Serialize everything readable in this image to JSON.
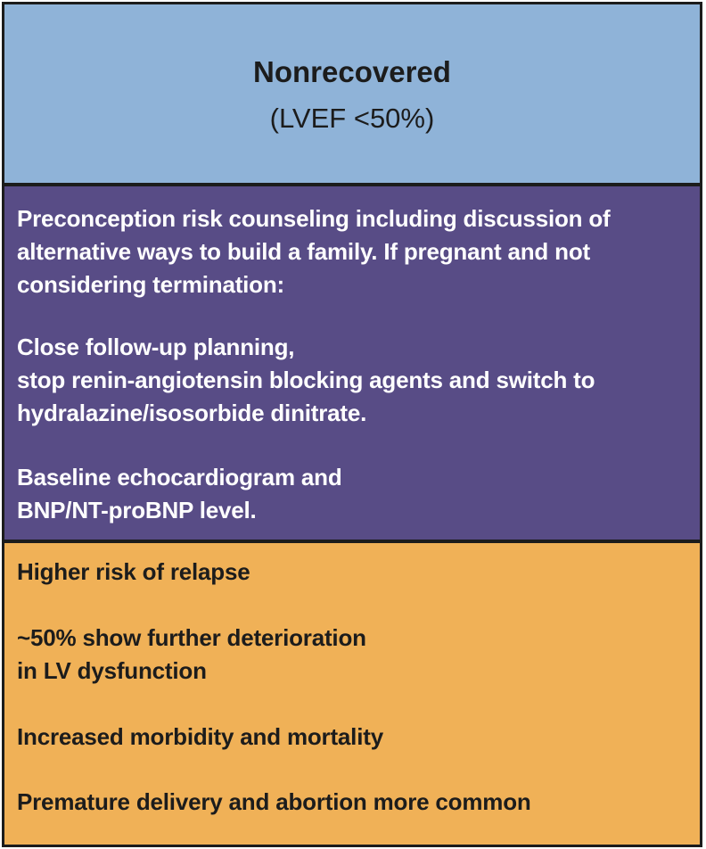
{
  "header": {
    "title": "Nonrecovered",
    "subtitle": "(LVEF <50%)"
  },
  "management": {
    "paragraphs": [
      "Preconception risk counseling including discussion of\nalternative ways to build a family. If pregnant and not\nconsidering termination:",
      "Close follow-up planning,\nstop renin-angiotensin blocking agents and switch to\nhydralazine/isosorbide dinitrate.",
      "Baseline echocardiogram and\nBNP/NT-proBNP level."
    ]
  },
  "outcomes": {
    "items": [
      "Higher risk of relapse",
      "~50% show further deterioration\nin LV dysfunction",
      "Increased morbidity and mortality",
      "Premature delivery and abortion more common"
    ]
  },
  "colors": {
    "header_bg": "#8fb3d8",
    "management_bg": "#584c86",
    "outcomes_bg": "#f0b157",
    "border": "#1c1c1c"
  }
}
